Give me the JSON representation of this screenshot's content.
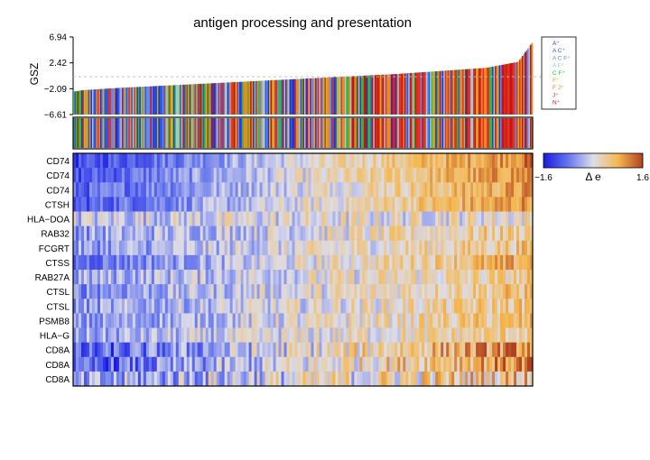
{
  "chart_data": {
    "type": "heatmap",
    "title": "antigen processing and presentation",
    "top_panel": {
      "type": "bar",
      "ylabel": "GSZ",
      "y_ticks": [
        6.94,
        2.42,
        -2.09,
        -6.61
      ],
      "y_tick_labels": [
        "6.94",
        "2.42",
        "−2.09",
        "−6.61"
      ],
      "ylim": [
        -6.61,
        6.94
      ],
      "reference_line": 0,
      "sorted": "ascending",
      "curve_samples": [
        {
          "q": 0.0,
          "gsz": -2.6
        },
        {
          "q": 0.02,
          "gsz": -2.35
        },
        {
          "q": 0.1,
          "gsz": -1.95
        },
        {
          "q": 0.3,
          "gsz": -1.15
        },
        {
          "q": 0.5,
          "gsz": -0.35
        },
        {
          "q": 0.7,
          "gsz": 0.45
        },
        {
          "q": 0.9,
          "gsz": 1.55
        },
        {
          "q": 0.97,
          "gsz": 2.6
        },
        {
          "q": 1.0,
          "gsz": 5.9
        }
      ]
    },
    "legend": {
      "entries": [
        {
          "label": "A⁺",
          "color": "#2233cc"
        },
        {
          "label": "A C⁺",
          "color": "#3355dd"
        },
        {
          "label": "A C F⁺",
          "color": "#6688ee"
        },
        {
          "label": "A F⁺",
          "color": "#99ccdd"
        },
        {
          "label": "C F⁺",
          "color": "#33bb33"
        },
        {
          "label": "F⁺",
          "color": "#bbbb22"
        },
        {
          "label": "F J⁺",
          "color": "#ee8822"
        },
        {
          "label": "J⁺",
          "color": "#dd3322"
        },
        {
          "label": "N⁺",
          "color": "#cc1111"
        }
      ]
    },
    "rows": [
      "CD74",
      "CD74",
      "CD74",
      "CTSH",
      "HLA−DOA",
      "RAB32",
      "FCGRT",
      "CTSS",
      "RAB27A",
      "CTSL",
      "CTSL",
      "PSMB8",
      "HLA−G",
      "CD8A",
      "CD8A",
      "CD8A"
    ],
    "row_gradient": [
      1.0,
      0.9,
      0.8,
      0.85,
      0.15,
      0.4,
      0.45,
      0.7,
      0.35,
      0.5,
      0.45,
      0.5,
      0.4,
      0.95,
      0.95,
      0.55
    ],
    "colorbar": {
      "label": "Δ e",
      "min": -1.6,
      "max": 1.6,
      "min_label": "−1.6",
      "max_label": "1.6",
      "colors": [
        "#1a1ae0",
        "#6677ee",
        "#dddde8",
        "#f5b850",
        "#b04020"
      ]
    }
  }
}
